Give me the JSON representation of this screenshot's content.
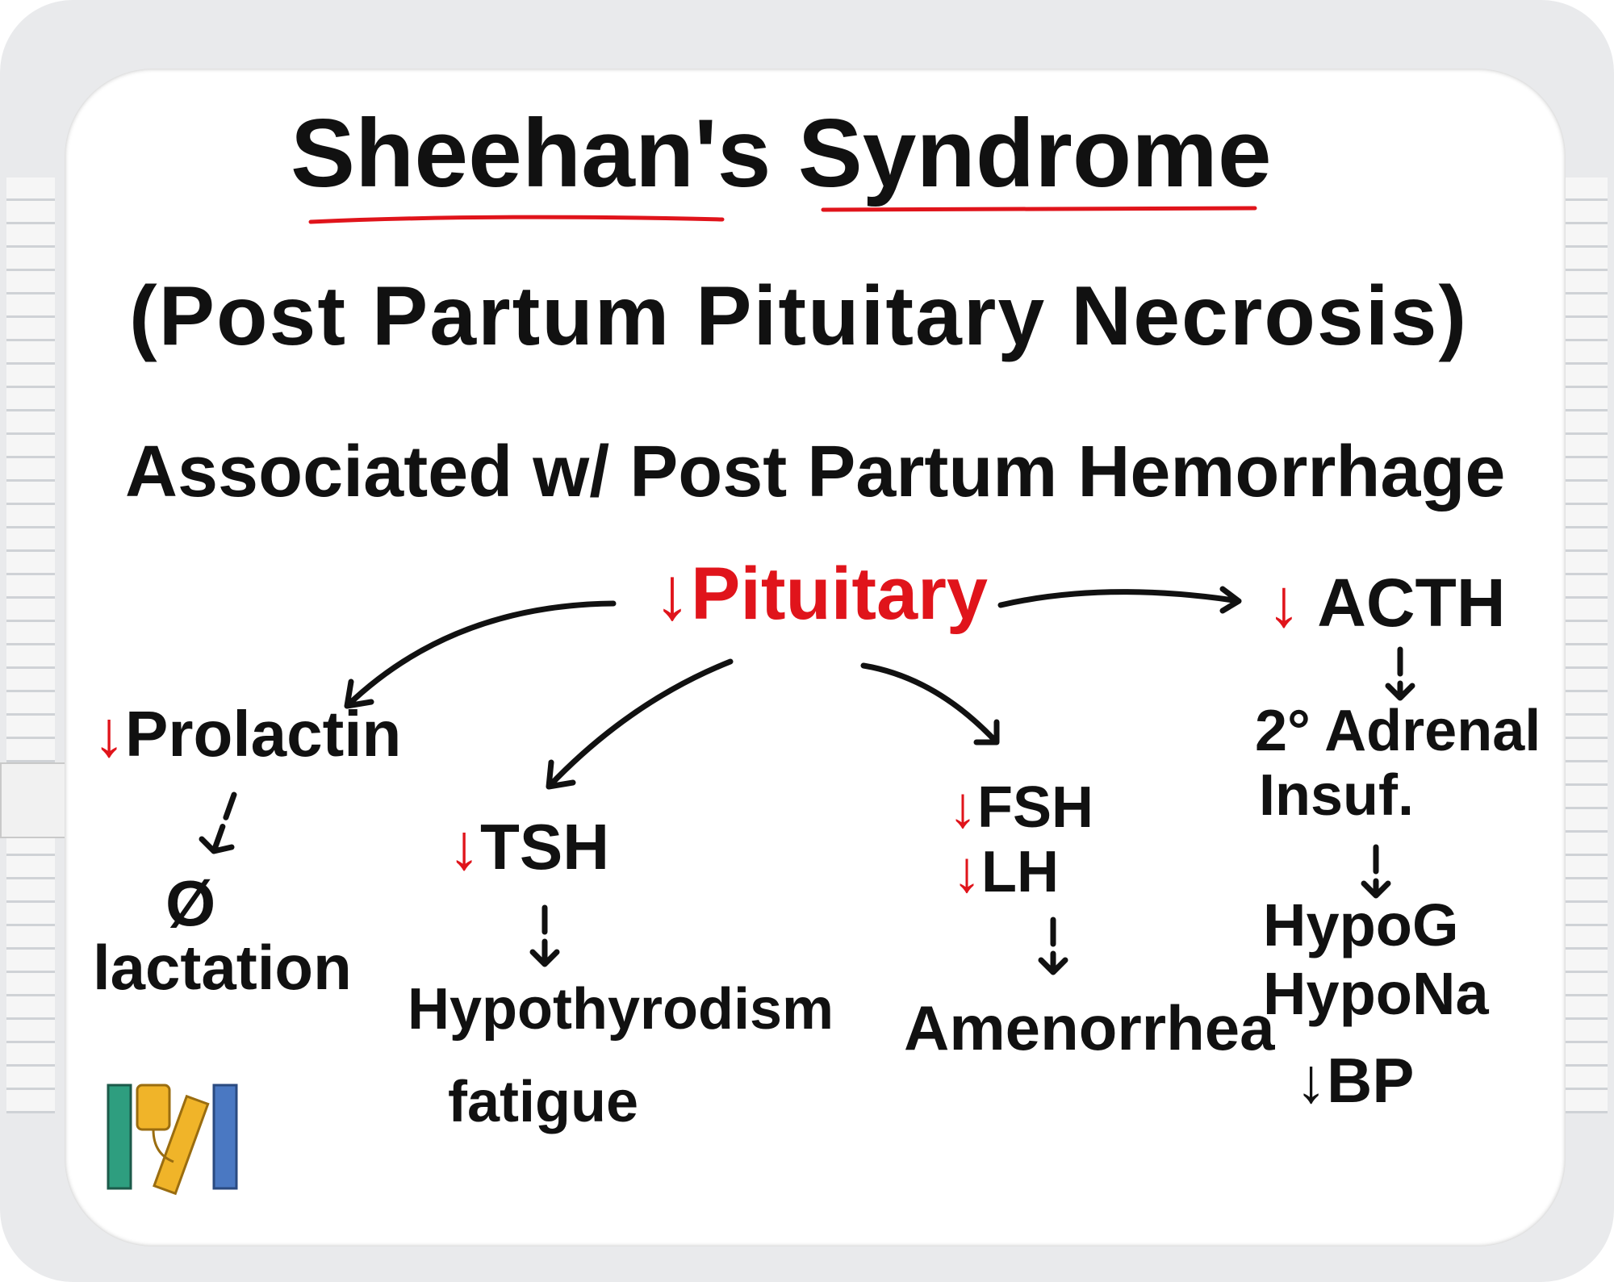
{
  "title": "Sheehan's Syndrome",
  "subtitle": "(Post Partum Pituitary Necrosis)",
  "association": "Associated w/ Post Partum Hemorrhage",
  "center": {
    "arrow": "↓",
    "label": "Pituitary"
  },
  "branches": {
    "prolactin": {
      "arrow": "↓",
      "label": "Prolactin",
      "effect_symbol": "Ø",
      "effect": "lactation"
    },
    "tsh": {
      "arrow": "↓",
      "label": "TSH",
      "effects": [
        "Hypothyrodism",
        "fatigue"
      ]
    },
    "gonadotropins": {
      "items": [
        {
          "arrow": "↓",
          "label": "FSH"
        },
        {
          "arrow": "↓",
          "label": "LH"
        }
      ],
      "effect": "Amenorrhea"
    },
    "acth": {
      "arrow": "↓",
      "label": "ACTH",
      "intermediate": [
        "2° Adrenal",
        "Insuf."
      ],
      "effects": [
        "HypoG",
        "HypoNa",
        "↓BP"
      ]
    }
  },
  "colors": {
    "ink": "#111111",
    "accent": "#e0141b",
    "logo": [
      "#2e9e7f",
      "#f0b429",
      "#4a78c2"
    ]
  },
  "logo": {
    "icon": "books-iv-bag-logo"
  }
}
